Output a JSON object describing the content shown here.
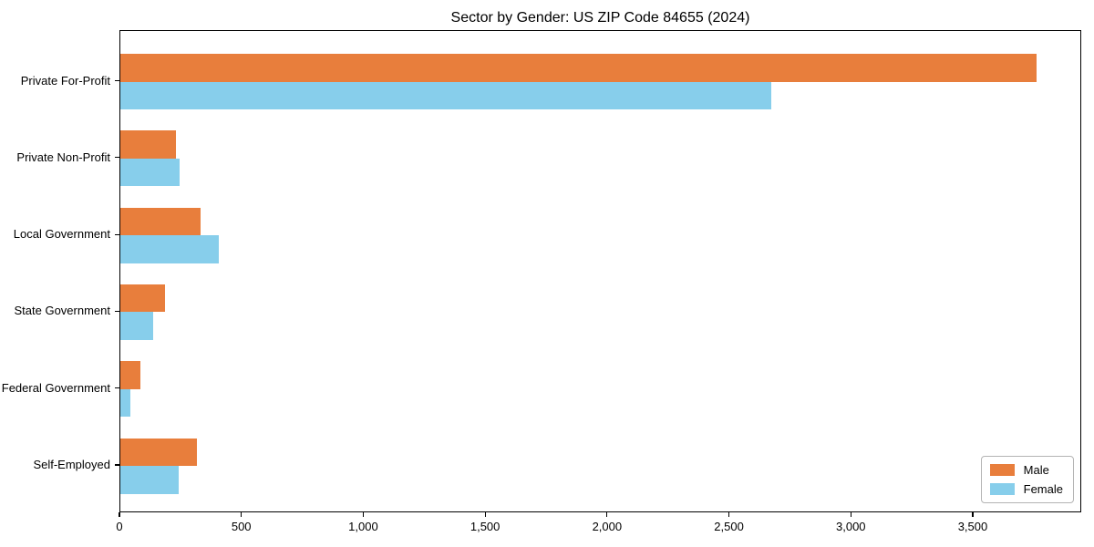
{
  "title": "Sector by Gender: US ZIP Code 84655 (2024)",
  "chart_data": {
    "type": "bar",
    "orientation": "horizontal",
    "title": "Sector by Gender: US ZIP Code 84655 (2024)",
    "categories": [
      "Private For-Profit",
      "Private Non-Profit",
      "Local Government",
      "State Government",
      "Federal Government",
      "Self-Employed"
    ],
    "series": [
      {
        "name": "Male",
        "color": "#e87e3c",
        "values": [
          3758,
          228,
          328,
          185,
          82,
          315
        ]
      },
      {
        "name": "Female",
        "color": "#87ceeb",
        "values": [
          2670,
          244,
          404,
          136,
          42,
          238
        ]
      }
    ],
    "xlabel": "",
    "ylabel": "",
    "xlim": [
      0,
      3945
    ],
    "xticks": [
      0,
      500,
      1000,
      1500,
      2000,
      2500,
      3000,
      3500
    ],
    "xtick_labels": [
      "0",
      "500",
      "1,000",
      "1,500",
      "2,000",
      "2,500",
      "3,000",
      "3,500"
    ],
    "grid": false,
    "legend_position": "lower right",
    "background_color": "#ffffff",
    "spine_color": "#000000"
  }
}
